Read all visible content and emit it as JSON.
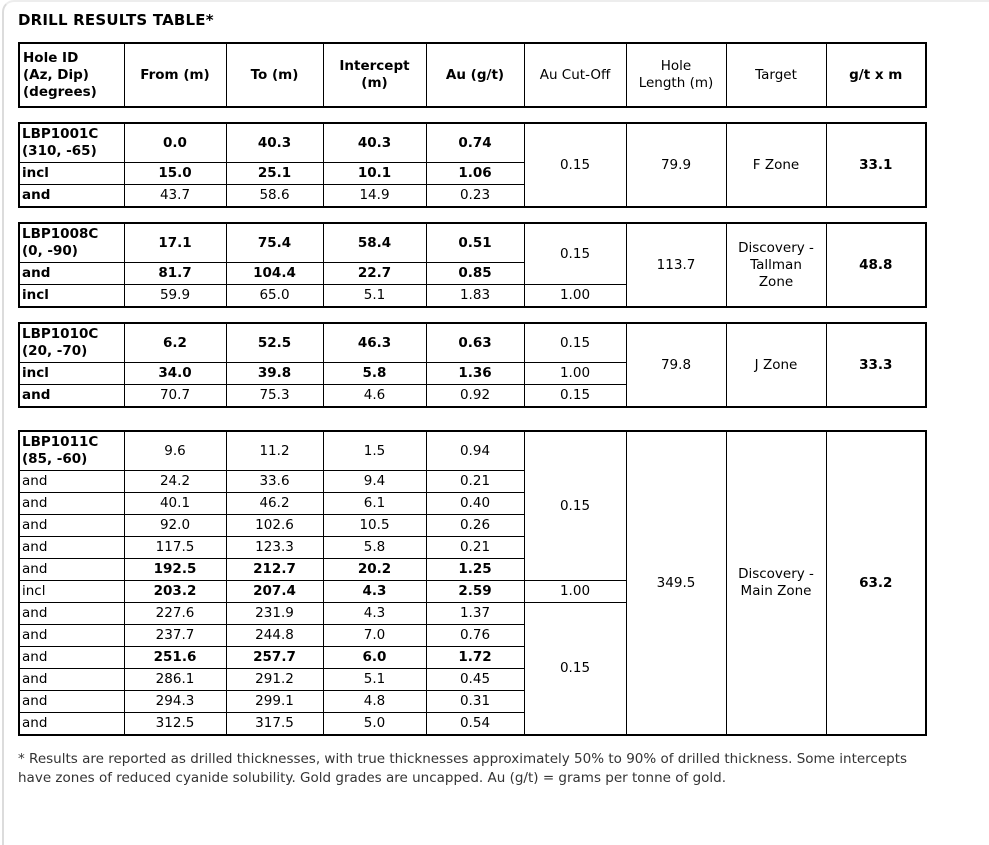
{
  "page": {
    "title": "DRILL RESULTS TABLE*",
    "footnote": "* Results are reported as drilled thicknesses, with true thicknesses approximately 50% to 90% of drilled thickness. Some intercepts have zones of reduced cyanide solubility. Gold grades are uncapped. Au (g/t) = grams per tonne of gold."
  },
  "table": {
    "headers": [
      {
        "text": "Hole ID\n(Az, Dip)\n(degrees)",
        "bold": true
      },
      {
        "text": "From (m)",
        "bold": true
      },
      {
        "text": "To (m)",
        "bold": true
      },
      {
        "text": "Intercept\n(m)",
        "bold": true
      },
      {
        "text": "Au (g/t)",
        "bold": true
      },
      {
        "text": "Au Cut-Off",
        "bold": false
      },
      {
        "text": "Hole\nLength (m)",
        "bold": false
      },
      {
        "text": "Target",
        "bold": false
      },
      {
        "text": "g/t x m",
        "bold": true
      }
    ],
    "groups": [
      {
        "hole_id": "LBP1001C",
        "rows": [
          {
            "label": "LBP1001C\n(310, -65)",
            "label_bold": true,
            "bold": true,
            "values": [
              "0.0",
              "40.3",
              "40.3",
              "0.74"
            ]
          },
          {
            "label": "incl",
            "label_bold": true,
            "bold": true,
            "values": [
              "15.0",
              "25.1",
              "10.1",
              "1.06"
            ]
          },
          {
            "label": "and",
            "label_bold": true,
            "bold": false,
            "values": [
              "43.7",
              "58.6",
              "14.9",
              "0.23"
            ]
          }
        ],
        "cutoffs": [
          {
            "value": "0.15",
            "rows": 3
          }
        ],
        "hole_length": "79.9",
        "target": "F Zone",
        "g_t_x_m": "33.1"
      },
      {
        "hole_id": "LBP1008C",
        "rows": [
          {
            "label": "LBP1008C\n(0, -90)",
            "label_bold": true,
            "bold": true,
            "values": [
              "17.1",
              "75.4",
              "58.4",
              "0.51"
            ]
          },
          {
            "label": "and",
            "label_bold": true,
            "bold": true,
            "values": [
              "81.7",
              "104.4",
              "22.7",
              "0.85"
            ]
          },
          {
            "label": "incl",
            "label_bold": true,
            "bold": false,
            "values": [
              "59.9",
              "65.0",
              "5.1",
              "1.83"
            ]
          }
        ],
        "cutoffs": [
          {
            "value": "0.15",
            "rows": 2
          },
          {
            "value": "1.00",
            "rows": 1
          }
        ],
        "hole_length": "113.7",
        "target": "Discovery - Tallman Zone",
        "g_t_x_m": "48.8"
      },
      {
        "hole_id": "LBP1010C",
        "rows": [
          {
            "label": "LBP1010C\n(20, -70)",
            "label_bold": true,
            "bold": true,
            "values": [
              "6.2",
              "52.5",
              "46.3",
              "0.63"
            ]
          },
          {
            "label": "incl",
            "label_bold": true,
            "bold": true,
            "values": [
              "34.0",
              "39.8",
              "5.8",
              "1.36"
            ]
          },
          {
            "label": "and",
            "label_bold": true,
            "bold": false,
            "values": [
              "70.7",
              "75.3",
              "4.6",
              "0.92"
            ]
          }
        ],
        "cutoffs": [
          {
            "value": "0.15",
            "rows": 1
          },
          {
            "value": "1.00",
            "rows": 1
          },
          {
            "value": "0.15",
            "rows": 1
          }
        ],
        "hole_length": "79.8",
        "target": "J Zone",
        "g_t_x_m": "33.3"
      },
      {
        "hole_id": "LBP1011C",
        "rows": [
          {
            "label": "LBP1011C\n(85, -60)",
            "label_bold": true,
            "bold": false,
            "values": [
              "9.6",
              "11.2",
              "1.5",
              "0.94"
            ]
          },
          {
            "label": "and",
            "label_bold": false,
            "bold": false,
            "values": [
              "24.2",
              "33.6",
              "9.4",
              "0.21"
            ]
          },
          {
            "label": "and",
            "label_bold": false,
            "bold": false,
            "values": [
              "40.1",
              "46.2",
              "6.1",
              "0.40"
            ]
          },
          {
            "label": "and",
            "label_bold": false,
            "bold": false,
            "values": [
              "92.0",
              "102.6",
              "10.5",
              "0.26"
            ]
          },
          {
            "label": "and",
            "label_bold": false,
            "bold": false,
            "values": [
              "117.5",
              "123.3",
              "5.8",
              "0.21"
            ]
          },
          {
            "label": "and",
            "label_bold": false,
            "bold": true,
            "values": [
              "192.5",
              "212.7",
              "20.2",
              "1.25"
            ]
          },
          {
            "label": "incl",
            "label_bold": false,
            "bold": true,
            "values": [
              "203.2",
              "207.4",
              "4.3",
              "2.59"
            ]
          },
          {
            "label": "and",
            "label_bold": false,
            "bold": false,
            "values": [
              "227.6",
              "231.9",
              "4.3",
              "1.37"
            ]
          },
          {
            "label": "and",
            "label_bold": false,
            "bold": false,
            "values": [
              "237.7",
              "244.8",
              "7.0",
              "0.76"
            ]
          },
          {
            "label": "and",
            "label_bold": false,
            "bold": true,
            "values": [
              "251.6",
              "257.7",
              "6.0",
              "1.72"
            ]
          },
          {
            "label": "and",
            "label_bold": false,
            "bold": false,
            "values": [
              "286.1",
              "291.2",
              "5.1",
              "0.45"
            ]
          },
          {
            "label": "and",
            "label_bold": false,
            "bold": false,
            "values": [
              "294.3",
              "299.1",
              "4.8",
              "0.31"
            ]
          },
          {
            "label": "and",
            "label_bold": false,
            "bold": false,
            "values": [
              "312.5",
              "317.5",
              "5.0",
              "0.54"
            ]
          }
        ],
        "cutoffs": [
          {
            "value": "0.15",
            "rows": 6
          },
          {
            "value": "1.00",
            "rows": 1
          },
          {
            "value": "0.15",
            "rows": 6
          }
        ],
        "hole_length": "349.5",
        "target": "Discovery - Main Zone",
        "g_t_x_m": "63.2"
      }
    ]
  }
}
